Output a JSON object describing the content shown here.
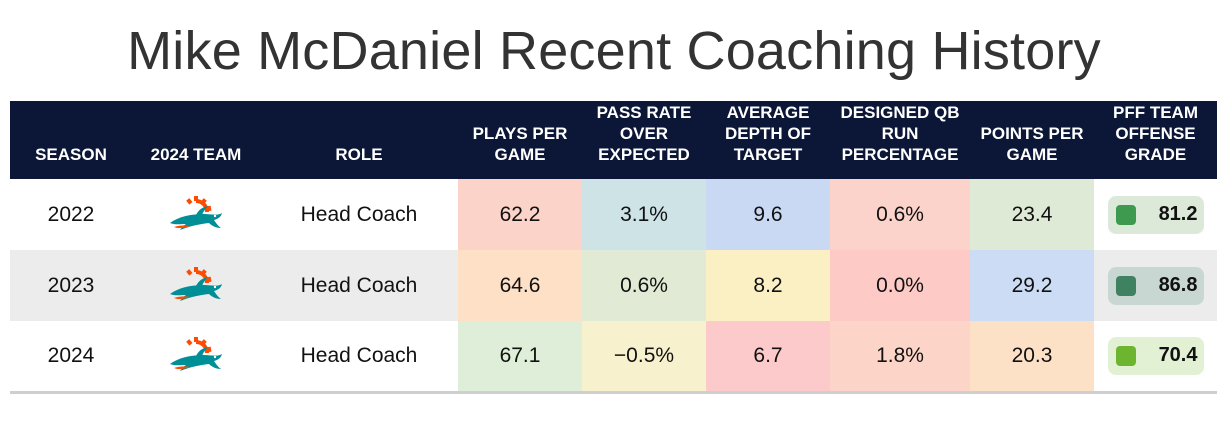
{
  "title": "Mike McDaniel Recent Coaching History",
  "columns": {
    "season": "SEASON",
    "team": "2024 TEAM",
    "role": "ROLE",
    "plays": "PLAYS PER GAME",
    "prox": "PASS RATE OVER EXPECTED",
    "adot": "AVERAGE DEPTH OF TARGET",
    "qbrun": "DESIGNED QB RUN PERCENTAGE",
    "ppg": "POINTS PER GAME",
    "grade": "PFF TEAM OFFENSE GRADE"
  },
  "rows": [
    {
      "season": "2022",
      "team_icon": "miami-dolphins-logo-icon",
      "role": "Head Coach",
      "plays": "62.2",
      "prox": "3.1%",
      "adot": "9.6",
      "qbrun": "0.6%",
      "ppg": "23.4",
      "grade": "81.2",
      "colors": {
        "plays": "#fbd3c8",
        "prox": "#cde3e6",
        "adot": "#c9d8f3",
        "qbrun": "#fcd3ca",
        "ppg": "#dfead6",
        "grade_bg": "#dce9d9",
        "grade_swatch": "#3d9a4f"
      }
    },
    {
      "season": "2023",
      "team_icon": "miami-dolphins-logo-icon",
      "role": "Head Coach",
      "plays": "64.6",
      "prox": "0.6%",
      "adot": "8.2",
      "qbrun": "0.0%",
      "ppg": "29.2",
      "grade": "86.8",
      "colors": {
        "plays": "#fde0c6",
        "prox": "#e1ead5",
        "adot": "#fbf0c4",
        "qbrun": "#fdcac6",
        "ppg": "#cbdcf4",
        "grade_bg": "#c9d7d2",
        "grade_swatch": "#3e8262"
      }
    },
    {
      "season": "2024",
      "team_icon": "miami-dolphins-logo-icon",
      "role": "Head Coach",
      "plays": "67.1",
      "prox": "−0.5%",
      "adot": "6.7",
      "qbrun": "1.8%",
      "ppg": "20.3",
      "grade": "70.4",
      "colors": {
        "plays": "#dfeed8",
        "prox": "#f8f1cd",
        "adot": "#fccaca",
        "qbrun": "#fdd4c8",
        "ppg": "#fde1c6",
        "grade_bg": "#e2f0d4",
        "grade_swatch": "#6db52e"
      }
    }
  ],
  "brand": {
    "header_bg": "#0c1738",
    "dolphin_aqua": "#008e97",
    "dolphin_orange": "#fc4c02"
  }
}
